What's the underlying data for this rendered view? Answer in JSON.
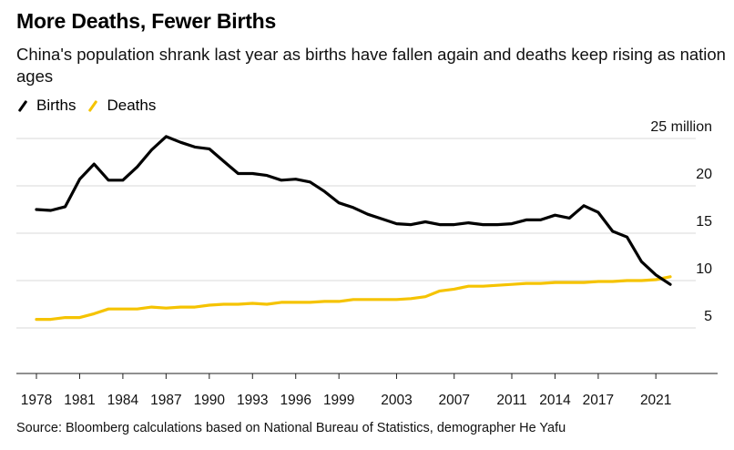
{
  "title": "More Deaths, Fewer Births",
  "subtitle": "China's population shrank last year as births have fallen again and deaths keep rising as nation ages",
  "source": "Source: Bloomberg calculations based on National Bureau of Statistics, demographer He Yafu",
  "legend": {
    "births_label": "Births",
    "deaths_label": "Deaths",
    "births_color": "#000000",
    "deaths_color": "#f5c300"
  },
  "chart_data": {
    "type": "line",
    "title": "More Deaths, Fewer Births",
    "xlabel": "",
    "ylabel": "",
    "x": [
      1978,
      1979,
      1980,
      1981,
      1982,
      1983,
      1984,
      1985,
      1986,
      1987,
      1988,
      1989,
      1990,
      1991,
      1992,
      1993,
      1994,
      1995,
      1996,
      1997,
      1998,
      1999,
      2000,
      2001,
      2002,
      2003,
      2004,
      2005,
      2006,
      2007,
      2008,
      2009,
      2010,
      2011,
      2012,
      2013,
      2014,
      2015,
      2016,
      2017,
      2018,
      2019,
      2020,
      2021,
      2022
    ],
    "xlim": [
      1977.5,
      2023.5
    ],
    "ylim": [
      0,
      26
    ],
    "x_ticks": [
      "1978",
      "1981",
      "1984",
      "1987",
      "1990",
      "1993",
      "1996",
      "1999",
      "2003",
      "2007",
      "2011",
      "2014",
      "2017",
      "2021"
    ],
    "y_ticks": [
      {
        "value": 25,
        "label": "25 million"
      },
      {
        "value": 20,
        "label": "20"
      },
      {
        "value": 15,
        "label": "15"
      },
      {
        "value": 10,
        "label": "10"
      },
      {
        "value": 5,
        "label": "5"
      }
    ],
    "grid": true,
    "series": [
      {
        "name": "Births",
        "color": "#000000",
        "values": [
          17.5,
          17.4,
          17.8,
          20.7,
          22.3,
          20.6,
          20.6,
          22.0,
          23.8,
          25.2,
          24.6,
          24.1,
          23.9,
          22.6,
          21.3,
          21.3,
          21.1,
          20.6,
          20.7,
          20.4,
          19.4,
          18.2,
          17.7,
          17.0,
          16.5,
          16.0,
          15.9,
          16.2,
          15.9,
          15.9,
          16.1,
          15.9,
          15.9,
          16.0,
          16.4,
          16.4,
          16.9,
          16.6,
          17.9,
          17.2,
          15.2,
          14.6,
          12.0,
          10.6,
          9.6
        ]
      },
      {
        "name": "Deaths",
        "color": "#f5c300",
        "values": [
          5.9,
          5.9,
          6.1,
          6.1,
          6.5,
          7.0,
          7.0,
          7.0,
          7.2,
          7.1,
          7.2,
          7.2,
          7.4,
          7.5,
          7.5,
          7.6,
          7.5,
          7.7,
          7.7,
          7.7,
          7.8,
          7.8,
          8.0,
          8.0,
          8.0,
          8.0,
          8.1,
          8.3,
          8.9,
          9.1,
          9.4,
          9.4,
          9.5,
          9.6,
          9.7,
          9.7,
          9.8,
          9.8,
          9.8,
          9.9,
          9.9,
          10.0,
          10.0,
          10.1,
          10.4
        ]
      }
    ]
  }
}
